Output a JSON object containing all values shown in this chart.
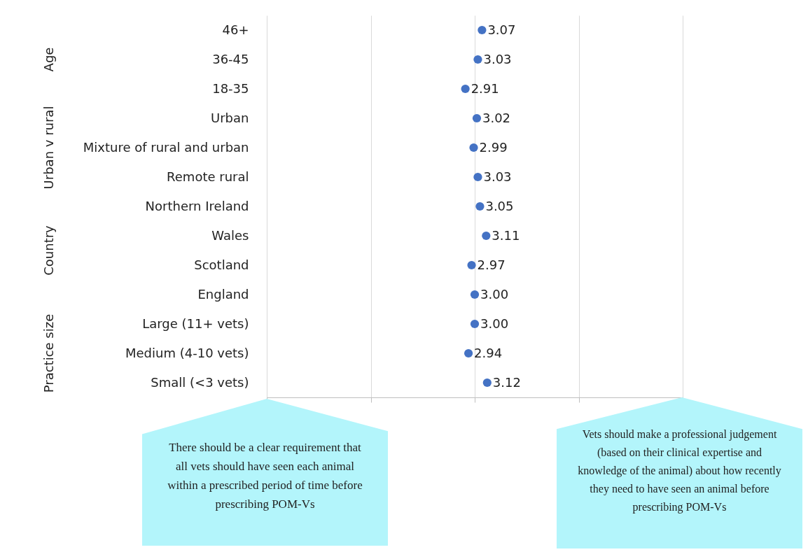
{
  "chart_data": {
    "type": "scatter",
    "orientation": "horizontal",
    "categories": [
      "46+",
      "36-45",
      "18-35",
      "Urban",
      "Mixture of rural and urban",
      "Remote rural",
      "Northern Ireland",
      "Wales",
      "Scotland",
      "England",
      "Large (11+ vets)",
      "Medium (4-10 vets)",
      "Small (<3 vets)"
    ],
    "values": [
      3.07,
      3.03,
      2.91,
      3.02,
      2.99,
      3.03,
      3.05,
      3.11,
      2.97,
      3.0,
      3.0,
      2.94,
      3.12
    ],
    "value_labels": [
      "3.07",
      "3.03",
      "2.91",
      "3.02",
      "2.99",
      "3.03",
      "3.05",
      "3.11",
      "2.97",
      "3.00",
      "3.00",
      "2.94",
      "3.12"
    ],
    "color": "#4472c4",
    "marker": "circle",
    "xlim": [
      1,
      5
    ],
    "xticks": [
      {
        "value": 1,
        "label": null
      },
      {
        "value": 2,
        "label": null
      },
      {
        "value": 3,
        "label": null
      },
      {
        "value": 4,
        "label": null
      },
      {
        "value": 5,
        "label": null
      }
    ],
    "grid": "x",
    "tick_labels": "y",
    "annotations": [
      "Age",
      "Urban v rural",
      "Country",
      "Practice size",
      "There should be a clear requirement that all vets should have seen each animal within a prescribed period of time before prescribing POM-Vs",
      "Vets should make a professional judgement (based on their clinical expertise and knowledge of the animal) about how recently they need to have seen an animal before prescribing POM-Vs"
    ]
  }
}
